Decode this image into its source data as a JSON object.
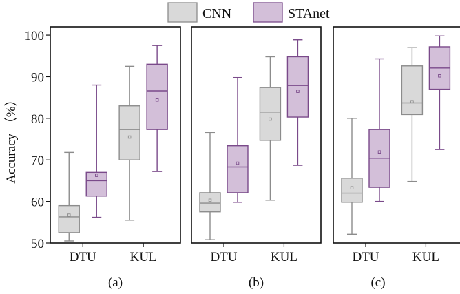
{
  "legend": {
    "position": "top-center",
    "items": [
      {
        "label": "CNN",
        "fill": "#d9d9d9",
        "stroke": "#8c8c8c"
      },
      {
        "label": "STAnet",
        "fill": "#d3bfd9",
        "stroke": "#7a4a8a"
      }
    ]
  },
  "chart_data": {
    "type": "box",
    "ylabel": "Accuracy （%）",
    "ylim": [
      50,
      102
    ],
    "yticks": [
      50,
      60,
      70,
      80,
      90,
      100
    ],
    "categories": [
      "DTU",
      "KUL"
    ],
    "series_names": [
      "CNN",
      "STAnet"
    ],
    "colors": {
      "CNN": {
        "fill": "#d9d9d9",
        "stroke": "#8c8c8c"
      },
      "STAnet": {
        "fill": "#d3bfd9",
        "stroke": "#7a4a8a"
      }
    },
    "panels": [
      {
        "label": "(a)",
        "groups": [
          {
            "category": "DTU",
            "boxes": [
              {
                "series": "CNN",
                "min": 50.5,
                "q1": 52.5,
                "median": 56.3,
                "q3": 59.0,
                "max": 71.8,
                "mean": 56.7
              },
              {
                "series": "STAnet",
                "min": 56.2,
                "q1": 61.3,
                "median": 65.0,
                "q3": 67.0,
                "max": 88.0,
                "mean": 66.3
              }
            ]
          },
          {
            "category": "KUL",
            "boxes": [
              {
                "series": "CNN",
                "min": 55.5,
                "q1": 70.0,
                "median": 77.3,
                "q3": 83.0,
                "max": 92.5,
                "mean": 75.5
              },
              {
                "series": "STAnet",
                "min": 67.2,
                "q1": 77.3,
                "median": 86.6,
                "q3": 93.0,
                "max": 97.5,
                "mean": 84.4
              }
            ]
          }
        ]
      },
      {
        "label": "(b)",
        "groups": [
          {
            "category": "DTU",
            "boxes": [
              {
                "series": "CNN",
                "min": 50.8,
                "q1": 57.5,
                "median": 59.6,
                "q3": 62.1,
                "max": 76.6,
                "mean": 60.3
              },
              {
                "series": "STAnet",
                "min": 59.8,
                "q1": 62.1,
                "median": 68.3,
                "q3": 73.4,
                "max": 89.8,
                "mean": 69.2
              }
            ]
          },
          {
            "category": "KUL",
            "boxes": [
              {
                "series": "CNN",
                "min": 60.3,
                "q1": 74.7,
                "median": 81.5,
                "q3": 87.4,
                "max": 94.8,
                "mean": 79.8
              },
              {
                "series": "STAnet",
                "min": 68.7,
                "q1": 80.3,
                "median": 87.9,
                "q3": 94.8,
                "max": 98.9,
                "mean": 86.5
              }
            ]
          }
        ]
      },
      {
        "label": "(c)",
        "groups": [
          {
            "category": "DTU",
            "boxes": [
              {
                "series": "CNN",
                "min": 52.1,
                "q1": 59.8,
                "median": 62.0,
                "q3": 65.6,
                "max": 80.0,
                "mean": 63.3
              },
              {
                "series": "STAnet",
                "min": 60.0,
                "q1": 63.4,
                "median": 70.4,
                "q3": 77.3,
                "max": 94.3,
                "mean": 71.9
              }
            ]
          },
          {
            "category": "KUL",
            "boxes": [
              {
                "series": "CNN",
                "min": 64.8,
                "q1": 80.9,
                "median": 83.7,
                "q3": 92.6,
                "max": 97.0,
                "mean": 84.0
              },
              {
                "series": "STAnet",
                "min": 72.5,
                "q1": 87.0,
                "median": 92.1,
                "q3": 97.2,
                "max": 99.8,
                "mean": 90.2
              }
            ]
          }
        ]
      }
    ]
  }
}
